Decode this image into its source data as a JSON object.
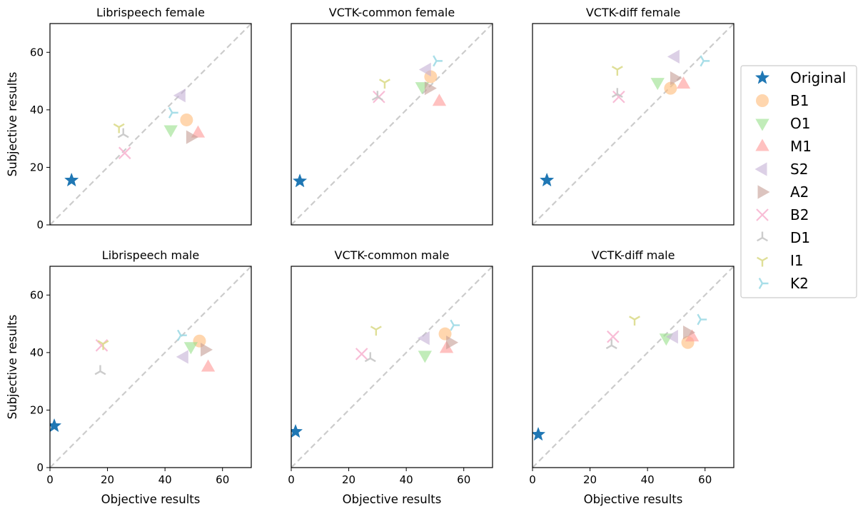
{
  "chart_data": {
    "type": "scatter",
    "xlabel": "Objective results",
    "ylabel": "Subjective results",
    "xlim": [
      0,
      70
    ],
    "ylim": [
      0,
      70
    ],
    "xticks": [
      "0",
      "20",
      "40",
      "60"
    ],
    "yticks": [
      "0",
      "20",
      "40",
      "60"
    ],
    "reference_line": "y = x, dashed light gray",
    "grid": false,
    "legend": {
      "position": "right",
      "entries": [
        {
          "name": "Original",
          "marker": "star",
          "color": "#1f77b4"
        },
        {
          "name": "B1",
          "marker": "circle",
          "color": "#ffbb78"
        },
        {
          "name": "O1",
          "marker": "triangle-down",
          "color": "#98df8a"
        },
        {
          "name": "M1",
          "marker": "triangle-up",
          "color": "#ff9896"
        },
        {
          "name": "S2",
          "marker": "triangle-left",
          "color": "#c5b0d5"
        },
        {
          "name": "A2",
          "marker": "triangle-right",
          "color": "#c49c94"
        },
        {
          "name": "B2",
          "marker": "x",
          "color": "#f7b6d2"
        },
        {
          "name": "D1",
          "marker": "tri-down",
          "color": "#c7c7c7"
        },
        {
          "name": "I1",
          "marker": "tri-up",
          "color": "#dbdb8d"
        },
        {
          "name": "K2",
          "marker": "tri-left",
          "color": "#9edae5"
        }
      ]
    },
    "panels": [
      {
        "title": "Librispeech female",
        "points": {
          "Original": [
            7.5,
            15.5
          ],
          "B1": [
            47.5,
            36.5
          ],
          "O1": [
            42,
            33
          ],
          "M1": [
            51.5,
            32
          ],
          "S2": [
            45.5,
            45
          ],
          "A2": [
            49,
            30.5
          ],
          "B2": [
            26,
            25
          ],
          "D1": [
            25.5,
            31.5
          ],
          "I1": [
            24,
            34
          ],
          "K2": [
            42.5,
            39
          ]
        }
      },
      {
        "title": "VCTK-common female",
        "points": {
          "Original": [
            3,
            15.2
          ],
          "B1": [
            48.5,
            51.5
          ],
          "O1": [
            45.5,
            48
          ],
          "M1": [
            51.5,
            43
          ],
          "S2": [
            47,
            54
          ],
          "A2": [
            48,
            47.5
          ],
          "B2": [
            30.5,
            44.5
          ],
          "D1": [
            30,
            44.5
          ],
          "I1": [
            32.5,
            49.5
          ],
          "K2": [
            50.5,
            57
          ]
        }
      },
      {
        "title": "VCTK-diff female",
        "points": {
          "Original": [
            5,
            15.5
          ],
          "B1": [
            48,
            47.5
          ],
          "O1": [
            43.5,
            49.5
          ],
          "M1": [
            52.5,
            49
          ],
          "S2": [
            49.5,
            58.5
          ],
          "A2": [
            49.5,
            51
          ],
          "B2": [
            30,
            44.5
          ],
          "D1": [
            29.5,
            45.5
          ],
          "I1": [
            29.5,
            54
          ],
          "K2": [
            59.5,
            57
          ]
        }
      },
      {
        "title": "Librispeech male",
        "points": {
          "Original": [
            1.5,
            14.5
          ],
          "B1": [
            52,
            44
          ],
          "O1": [
            49,
            42
          ],
          "M1": [
            55,
            35
          ],
          "S2": [
            46.5,
            38.5
          ],
          "A2": [
            54,
            41
          ],
          "B2": [
            18,
            42.5
          ],
          "D1": [
            17.5,
            33.5
          ],
          "I1": [
            18.5,
            43
          ],
          "K2": [
            45.5,
            46
          ]
        }
      },
      {
        "title": "VCTK-common male",
        "points": {
          "Original": [
            1.5,
            12.5
          ],
          "B1": [
            53.5,
            46.5
          ],
          "O1": [
            46.5,
            39
          ],
          "M1": [
            54,
            41.5
          ],
          "S2": [
            46.5,
            45
          ],
          "A2": [
            55.5,
            43.5
          ],
          "B2": [
            24.5,
            39.5
          ],
          "D1": [
            27.5,
            38
          ],
          "I1": [
            29.5,
            48
          ],
          "K2": [
            56.5,
            49.5
          ]
        }
      },
      {
        "title": "VCTK-diff male",
        "points": {
          "Original": [
            2,
            11.5
          ],
          "B1": [
            54,
            43.5
          ],
          "O1": [
            46.5,
            45
          ],
          "M1": [
            55.5,
            45.5
          ],
          "S2": [
            49,
            45.5
          ],
          "A2": [
            54,
            47
          ],
          "B2": [
            28,
            45.5
          ],
          "D1": [
            27.5,
            42.5
          ],
          "I1": [
            35.5,
            51.5
          ],
          "K2": [
            58.5,
            51.5
          ]
        }
      }
    ]
  }
}
